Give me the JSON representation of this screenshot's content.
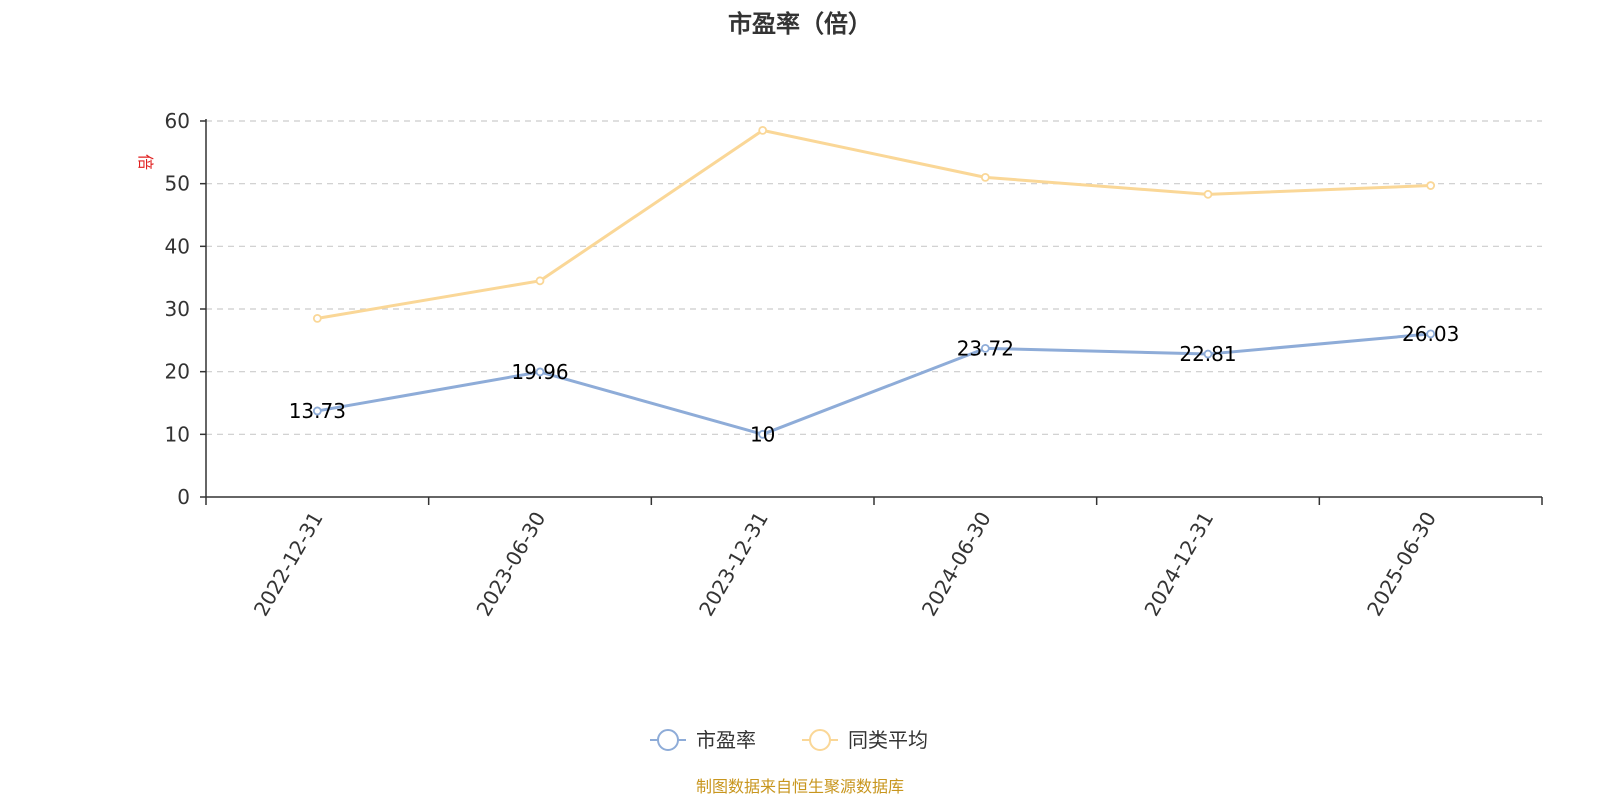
{
  "chart_data": {
    "type": "line",
    "title": "市盈率（倍）",
    "ylabel": "倍",
    "ylim": [
      0,
      60
    ],
    "yticks": [
      0,
      10,
      20,
      30,
      40,
      50,
      60
    ],
    "categories": [
      "2022-12-31",
      "2023-06-30",
      "2023-12-31",
      "2024-06-30",
      "2024-12-31",
      "2025-06-30"
    ],
    "series": [
      {
        "name": "市盈率",
        "values": [
          13.73,
          19.96,
          10,
          23.72,
          22.81,
          26.03
        ],
        "color": "#8eacd8",
        "show_labels": true
      },
      {
        "name": "同类平均",
        "values": [
          28.5,
          34.5,
          58.5,
          51.0,
          48.3,
          49.7
        ],
        "color": "#fad797",
        "show_labels": false
      }
    ],
    "grid": "horizontal dashed",
    "legend_position": "bottom-center",
    "source_note": "制图数据来自恒生聚源数据库"
  }
}
